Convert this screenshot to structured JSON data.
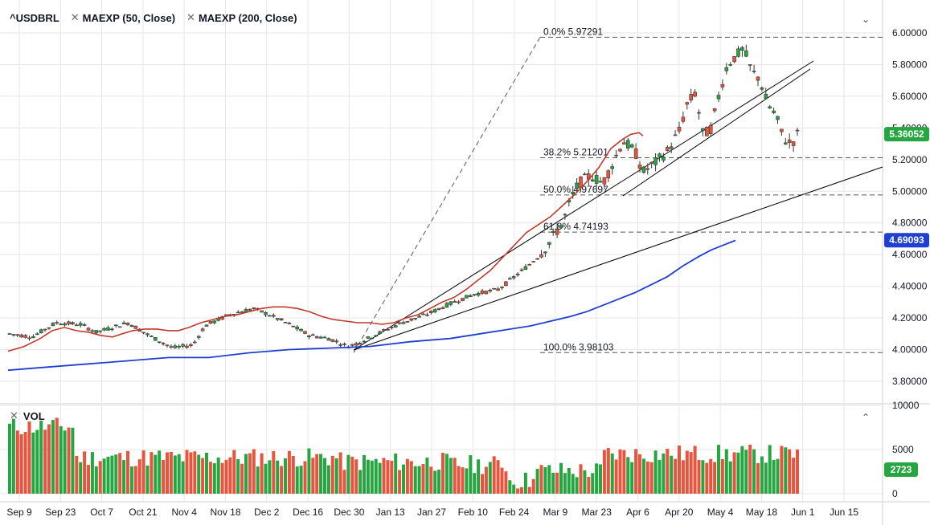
{
  "legend": {
    "symbol": "^USDBRL",
    "ma50": "MAEXP (50, Close)",
    "ma200": "MAEXP (200, Close)",
    "remove_icon": "x-icon"
  },
  "volume_legend": {
    "label": "VOL"
  },
  "controls": {
    "collapse_main": "chevron-down-icon",
    "collapse_volume": "chevron-up-icon"
  },
  "colors": {
    "up": "#26a641",
    "down": "#e8553e",
    "ma50": "#c0392b",
    "ma200": "#1e3fd1",
    "grid": "#e6e6e6",
    "fib": "#555555",
    "trend": "#000000",
    "last_price_bg": "#26a641",
    "ma200_label_bg": "#1e3fd1"
  },
  "chart_data": {
    "type": "candlestick",
    "title": "^USDBRL",
    "y_axis": {
      "ticks": [
        "6.00000",
        "5.80000",
        "5.60000",
        "5.40000",
        "5.20000",
        "5.00000",
        "4.80000",
        "4.60000",
        "4.40000",
        "4.20000",
        "4.00000",
        "3.80000"
      ],
      "ylim": [
        3.7,
        6.05
      ]
    },
    "x_axis": {
      "ticks": [
        "Sep 9",
        "Sep 23",
        "Oct 7",
        "Oct 21",
        "Nov 4",
        "Nov 18",
        "Dec 2",
        "Dec 16",
        "Dec 30",
        "Jan 13",
        "Jan 27",
        "Feb 10",
        "Feb 24",
        "Mar 9",
        "Mar 23",
        "Apr 6",
        "Apr 20",
        "May 4",
        "May 18",
        "Jun 1",
        "Jun 15"
      ]
    },
    "last_price": "5.36052",
    "ma200_last": "4.69093",
    "fibonacci": [
      {
        "label": "0.0% 5.97291",
        "value": 5.97291
      },
      {
        "label": "38.2% 5.21201",
        "value": 5.21201
      },
      {
        "label": "50.0% 4.97697",
        "value": 4.97697
      },
      {
        "label": "61.8% 4.74193",
        "value": 4.74193
      },
      {
        "label": "100.0% 3.98103",
        "value": 3.98103
      }
    ],
    "ma50_points": [
      [
        0,
        3.99
      ],
      [
        20,
        4.02
      ],
      [
        40,
        4.07
      ],
      [
        55,
        4.12
      ],
      [
        70,
        4.14
      ],
      [
        85,
        4.12
      ],
      [
        100,
        4.11
      ],
      [
        115,
        4.09
      ],
      [
        130,
        4.08
      ],
      [
        142,
        4.1
      ],
      [
        155,
        4.12
      ],
      [
        170,
        4.13
      ],
      [
        185,
        4.13
      ],
      [
        200,
        4.12
      ],
      [
        212,
        4.12
      ],
      [
        225,
        4.14
      ],
      [
        240,
        4.17
      ],
      [
        255,
        4.19
      ],
      [
        270,
        4.21
      ],
      [
        285,
        4.22
      ],
      [
        300,
        4.24
      ],
      [
        315,
        4.26
      ],
      [
        330,
        4.27
      ],
      [
        345,
        4.27
      ],
      [
        360,
        4.26
      ],
      [
        375,
        4.24
      ],
      [
        390,
        4.21
      ],
      [
        405,
        4.19
      ],
      [
        420,
        4.18
      ],
      [
        435,
        4.17
      ],
      [
        450,
        4.17
      ],
      [
        465,
        4.16
      ],
      [
        480,
        4.17
      ],
      [
        495,
        4.2
      ],
      [
        510,
        4.22
      ],
      [
        525,
        4.26
      ],
      [
        540,
        4.3
      ],
      [
        555,
        4.33
      ],
      [
        570,
        4.38
      ],
      [
        585,
        4.44
      ],
      [
        600,
        4.5
      ],
      [
        615,
        4.58
      ],
      [
        630,
        4.66
      ],
      [
        645,
        4.74
      ],
      [
        660,
        4.79
      ],
      [
        675,
        4.84
      ],
      [
        690,
        4.91
      ],
      [
        705,
        4.98
      ],
      [
        720,
        5.06
      ],
      [
        735,
        5.15
      ],
      [
        750,
        5.27
      ],
      [
        765,
        5.33
      ],
      [
        775,
        5.36
      ],
      [
        785,
        5.37
      ],
      [
        790,
        5.35
      ]
    ],
    "ma200_points": [
      [
        0,
        3.87
      ],
      [
        50,
        3.89
      ],
      [
        100,
        3.91
      ],
      [
        150,
        3.93
      ],
      [
        200,
        3.95
      ],
      [
        250,
        3.95
      ],
      [
        300,
        3.98
      ],
      [
        350,
        4.0
      ],
      [
        400,
        4.01
      ],
      [
        450,
        4.02
      ],
      [
        500,
        4.05
      ],
      [
        550,
        4.07
      ],
      [
        600,
        4.11
      ],
      [
        650,
        4.15
      ],
      [
        700,
        4.21
      ],
      [
        720,
        4.24
      ],
      [
        740,
        4.28
      ],
      [
        760,
        4.32
      ],
      [
        780,
        4.36
      ],
      [
        800,
        4.41
      ],
      [
        820,
        4.46
      ],
      [
        840,
        4.53
      ],
      [
        860,
        4.59
      ],
      [
        875,
        4.63
      ],
      [
        890,
        4.66
      ],
      [
        900,
        4.68
      ],
      [
        905,
        4.69
      ]
    ],
    "volume": {
      "ticks": [
        "10000",
        "5000",
        "0"
      ],
      "last": "2723",
      "ylim": [
        0,
        10000
      ]
    }
  }
}
